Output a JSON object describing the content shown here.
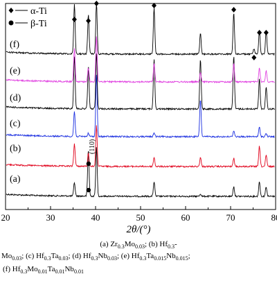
{
  "chart_data": {
    "type": "line",
    "xlabel": "2θ/(°)",
    "xlim": [
      20,
      80
    ],
    "x_ticks": [
      "20",
      "30",
      "40",
      "50",
      "60",
      "70",
      "80"
    ],
    "grid": false,
    "legend_placement": "top-left",
    "legend": [
      {
        "marker": "diamond",
        "label": "α-Ti"
      },
      {
        "marker": "circle",
        "label": "β-Ti"
      }
    ],
    "series": [
      {
        "name": "(a)",
        "color": "#000000",
        "peaks": [
          {
            "x": 35.3,
            "h": 0.28
          },
          {
            "x": 38.4,
            "h": 0.95
          },
          {
            "x": 40.2,
            "h": 1.0
          },
          {
            "x": 53.0,
            "h": 0.3
          },
          {
            "x": 63.3,
            "h": 0.05
          },
          {
            "x": 70.7,
            "h": 0.2
          },
          {
            "x": 76.4,
            "h": 0.3
          },
          {
            "x": 77.9,
            "h": 0.2
          }
        ]
      },
      {
        "name": "(b)",
        "color": "#e0001a",
        "peaks": [
          {
            "x": 35.3,
            "h": 0.5
          },
          {
            "x": 38.4,
            "h": 0.28
          },
          {
            "x": 40.2,
            "h": 0.9
          },
          {
            "x": 53.0,
            "h": 0.2
          },
          {
            "x": 63.3,
            "h": 0.2
          },
          {
            "x": 70.7,
            "h": 0.18
          },
          {
            "x": 76.4,
            "h": 0.45
          },
          {
            "x": 77.9,
            "h": 0.25
          }
        ]
      },
      {
        "name": "(c)",
        "color": "#1a2ee0",
        "peaks": [
          {
            "x": 35.3,
            "h": 0.4
          },
          {
            "x": 38.4,
            "h": 0.05
          },
          {
            "x": 40.2,
            "h": 1.0
          },
          {
            "x": 53.0,
            "h": 0.06
          },
          {
            "x": 63.3,
            "h": 0.6
          },
          {
            "x": 70.7,
            "h": 0.1
          },
          {
            "x": 76.4,
            "h": 0.15
          },
          {
            "x": 77.9,
            "h": 0.05
          }
        ]
      },
      {
        "name": "(d)",
        "color": "#000000",
        "peaks": [
          {
            "x": 35.3,
            "h": 0.95
          },
          {
            "x": 38.4,
            "h": 0.75
          },
          {
            "x": 40.2,
            "h": 1.0
          },
          {
            "x": 53.0,
            "h": 0.9
          },
          {
            "x": 63.3,
            "h": 0.9
          },
          {
            "x": 70.7,
            "h": 0.95
          },
          {
            "x": 76.4,
            "h": 0.55
          },
          {
            "x": 77.9,
            "h": 0.4
          }
        ]
      },
      {
        "name": "(e)",
        "color": "#e040e0",
        "peaks": [
          {
            "x": 35.3,
            "h": 0.75
          },
          {
            "x": 38.4,
            "h": 0.3
          },
          {
            "x": 40.2,
            "h": 1.0
          },
          {
            "x": 53.0,
            "h": 0.4
          },
          {
            "x": 63.3,
            "h": 0.2
          },
          {
            "x": 70.7,
            "h": 0.4
          },
          {
            "x": 76.4,
            "h": 0.3
          },
          {
            "x": 77.9,
            "h": 0.25
          }
        ]
      },
      {
        "name": "(f)",
        "color": "#000000",
        "peaks": [
          {
            "x": 35.3,
            "h": 0.95
          },
          {
            "x": 38.4,
            "h": 0.75
          },
          {
            "x": 40.2,
            "h": 1.0
          },
          {
            "x": 53.0,
            "h": 0.9
          },
          {
            "x": 63.3,
            "h": 0.4
          },
          {
            "x": 70.7,
            "h": 0.8
          },
          {
            "x": 75.2,
            "h": 0.1
          },
          {
            "x": 76.4,
            "h": 0.45
          },
          {
            "x": 77.9,
            "h": 0.45
          }
        ]
      }
    ],
    "annotations": {
      "alpha_peaks": [
        35.3,
        38.4,
        40.2,
        53.0,
        70.7,
        75.2,
        76.4,
        77.9
      ],
      "beta_peaks": [
        38.6
      ],
      "plane_label": "(110)"
    }
  },
  "caption": {
    "line1": [
      "(a) ",
      "Zr",
      "0.3",
      "Mo",
      "0.03",
      "; ",
      "(b) ",
      "Hf",
      "0.3",
      "-"
    ],
    "line2": [
      "Mo",
      "0.03",
      "; ",
      "(c) ",
      "Hf",
      "0.3",
      "Ta",
      "0.03",
      "; ",
      "(d) ",
      "Hf",
      "0.3",
      "Nb",
      "0.03",
      "; ",
      "(e) ",
      "Hf",
      "0.3",
      "Ta",
      "0.015",
      "Nb",
      "0.015",
      ";"
    ],
    "line3": [
      "(f) ",
      "Hf",
      "0.3",
      "Mo",
      "0.01",
      "Ta",
      "0.01",
      "Nb",
      "0.01"
    ]
  }
}
